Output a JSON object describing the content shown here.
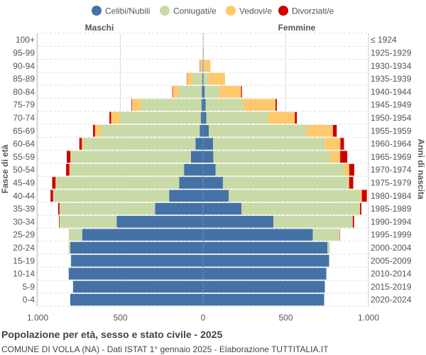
{
  "chart_data": {
    "type": "bar",
    "orientation": "horizontal-pyramid",
    "title": "Popolazione per età, sesso e stato civile - 2025",
    "subtitle": "COMUNE DI VOLLA (NA) - Dati ISTAT 1° gennaio 2025 - Elaborazione TUTTITALIA.IT",
    "left_header": "Maschi",
    "right_header": "Femmine",
    "ylabel_left": "Fasce di età",
    "ylabel_right": "Anni di nascita",
    "xlim": [
      -1000,
      1000
    ],
    "x_ticks": [
      "1.000",
      "500",
      "0",
      "500",
      "1.000"
    ],
    "grid": true,
    "legend_position": "top",
    "legend": [
      "Celibi/Nubili",
      "Coniugati/e",
      "Vedovi/e",
      "Divorziati/e"
    ],
    "colors": [
      "#4472a6",
      "#c8daa6",
      "#fec96a",
      "#cc0000"
    ],
    "categories": [
      "100+",
      "95-99",
      "90-94",
      "85-89",
      "80-84",
      "75-79",
      "70-74",
      "65-69",
      "60-64",
      "55-59",
      "50-54",
      "45-49",
      "40-44",
      "35-39",
      "30-34",
      "25-29",
      "20-24",
      "15-19",
      "10-14",
      "5-9",
      "0-4"
    ],
    "birth_years": [
      "≤ 1924",
      "1925-1929",
      "1930-1934",
      "1935-1939",
      "1940-1944",
      "1945-1949",
      "1950-1954",
      "1955-1959",
      "1960-1964",
      "1965-1969",
      "1970-1974",
      "1975-1979",
      "1980-1984",
      "1985-1989",
      "1990-1994",
      "1995-1999",
      "2000-2004",
      "2005-2009",
      "2010-2014",
      "2015-2019",
      "2020-2024"
    ],
    "males": {
      "celibi": [
        0,
        1,
        2,
        5,
        8,
        10,
        14,
        20,
        45,
        73,
        115,
        145,
        205,
        290,
        522,
        730,
        803,
        798,
        812,
        786,
        803
      ],
      "coniugati": [
        0,
        0,
        6,
        60,
        140,
        365,
        490,
        600,
        680,
        725,
        690,
        745,
        700,
        577,
        345,
        77,
        8,
        2,
        0,
        0,
        0
      ],
      "vedovi": [
        0,
        1,
        10,
        30,
        35,
        55,
        52,
        33,
        8,
        4,
        3,
        2,
        2,
        1,
        1,
        1,
        2,
        0,
        0,
        0,
        0
      ],
      "divorziati": [
        0,
        0,
        2,
        2,
        3,
        3,
        10,
        12,
        15,
        22,
        20,
        20,
        15,
        8,
        3,
        1,
        0,
        0,
        0,
        0,
        0
      ]
    },
    "females": {
      "nubili": [
        1,
        1,
        2,
        3,
        10,
        15,
        20,
        35,
        60,
        62,
        76,
        120,
        155,
        232,
        425,
        663,
        752,
        762,
        745,
        736,
        732
      ],
      "coniugate": [
        0,
        1,
        5,
        30,
        90,
        228,
        375,
        590,
        675,
        707,
        775,
        755,
        795,
        715,
        478,
        160,
        14,
        0,
        0,
        0,
        0
      ],
      "vedove": [
        1,
        3,
        38,
        100,
        130,
        195,
        160,
        160,
        95,
        60,
        33,
        8,
        10,
        2,
        2,
        2,
        0,
        0,
        0,
        0,
        0
      ],
      "divorziate": [
        0,
        0,
        0,
        0,
        5,
        8,
        12,
        23,
        22,
        43,
        30,
        25,
        30,
        8,
        8,
        2,
        0,
        0,
        0,
        0,
        0
      ]
    }
  }
}
